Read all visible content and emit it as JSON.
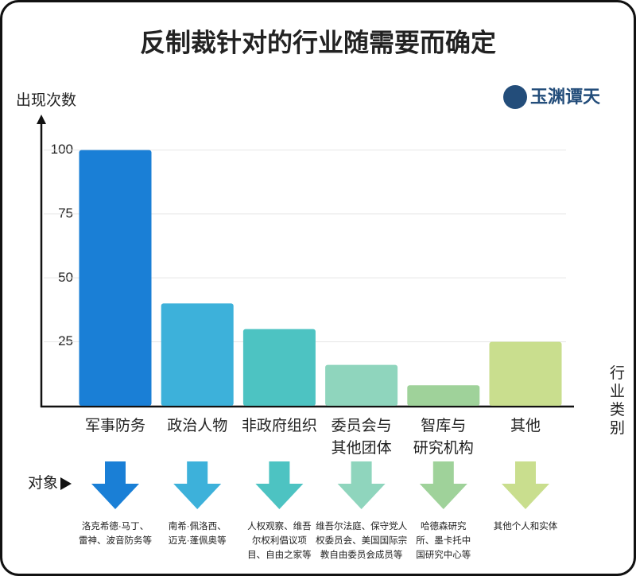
{
  "chart_data": {
    "type": "bar",
    "title": "反制裁针对的行业随需要而确定",
    "y_label": "出现次数",
    "x_label": "行业类别",
    "logo": "玉渊谭天",
    "categories": [
      "军事防务",
      "政治人物",
      "非政府组织",
      "委员会与\n其他团体",
      "智库与\n研究机构",
      "其他"
    ],
    "values": [
      100,
      40,
      30,
      16,
      8,
      25
    ],
    "colors": [
      "#1a7fd6",
      "#3db1da",
      "#4dc3c2",
      "#8fd5bd",
      "#9fd29a",
      "#c9de8e"
    ],
    "ylim": [
      0,
      112
    ],
    "yticks": [
      25,
      50,
      75,
      100
    ],
    "grid": true,
    "objects_label": "对象",
    "objects": [
      "洛克希德·马丁、\n雷神、波音防务等",
      "南希·佩洛西、\n迈克·蓬佩奥等",
      "人权观察、维吾\n尔权利倡议项\n目、自由之家等",
      "维吾尔法庭、保守党人\n权委员会、美国国际宗\n教自由委员会成员等",
      "哈德森研究\n所、墨卡托中\n国研究中心等",
      "其他个人和实体"
    ]
  }
}
